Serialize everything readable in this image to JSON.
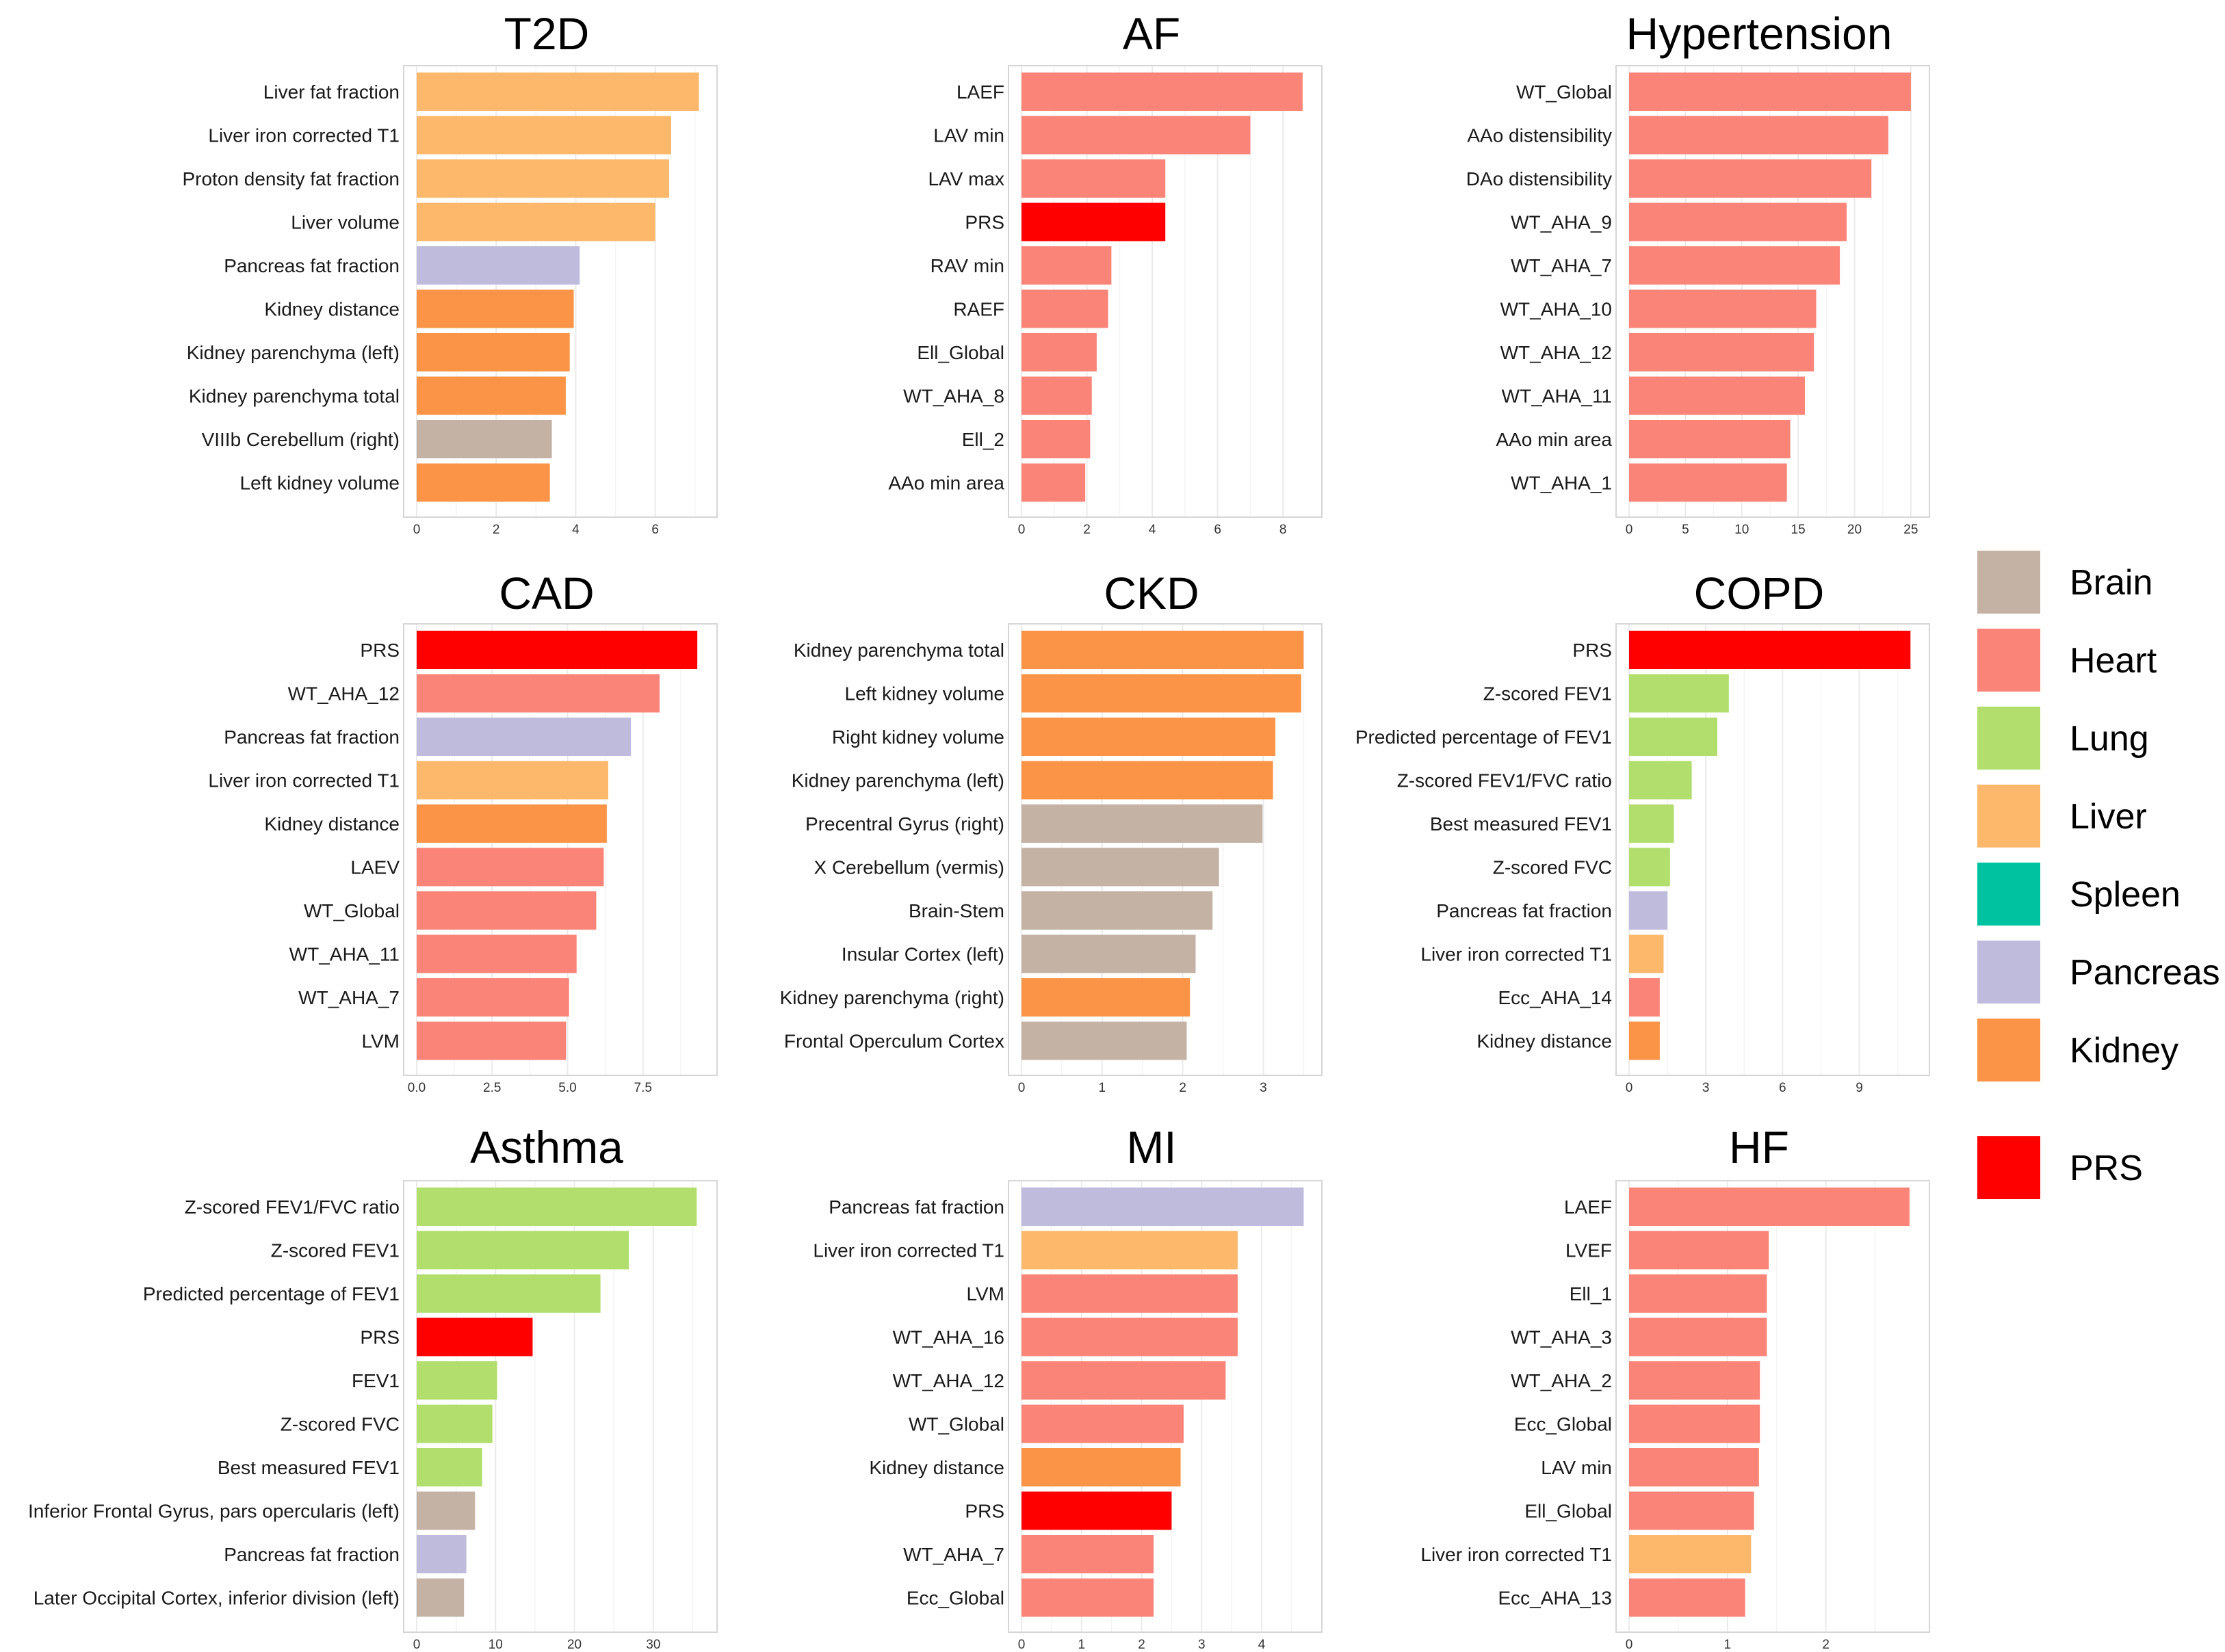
{
  "colors": {
    "Brain": "#c4b2a4",
    "Heart": "#fa8478",
    "Lung": "#b1de6c",
    "Liver": "#fdb86c",
    "Spleen": "#00c2a0",
    "Pancreas": "#bebbdc",
    "Kidney": "#fb9447",
    "PRS": "#ff0000"
  },
  "legend": {
    "items": [
      "Brain",
      "Heart",
      "Lung",
      "Liver",
      "Spleen",
      "Pancreas",
      "Kidney",
      "PRS"
    ]
  },
  "chart_data": [
    {
      "type": "bar",
      "orientation": "horizontal",
      "title": "T2D",
      "categories": [
        "Liver fat fraction",
        "Liver iron corrected T1",
        "Proton density fat fraction",
        "Liver volume",
        "Pancreas fat fraction",
        "Kidney distance",
        "Kidney parenchyma (left)",
        "Kidney parenchyma total",
        "VIIIb Cerebellum (right)",
        "Left kidney volume"
      ],
      "values": [
        7.1,
        6.4,
        6.35,
        6.0,
        4.1,
        3.95,
        3.85,
        3.75,
        3.4,
        3.35
      ],
      "groups": [
        "Liver",
        "Liver",
        "Liver",
        "Liver",
        "Pancreas",
        "Kidney",
        "Kidney",
        "Kidney",
        "Brain",
        "Kidney"
      ],
      "xlim": [
        0,
        7.4
      ],
      "xticks": [
        0,
        2,
        4,
        6
      ],
      "tick_labels": [
        "0",
        "2",
        "4",
        "6"
      ]
    },
    {
      "type": "bar",
      "orientation": "horizontal",
      "title": "AF",
      "categories": [
        "LAEF",
        "LAV min",
        "LAV max",
        "PRS",
        "RAV min",
        "RAEF",
        "Ell_Global",
        "WT_AHA_8",
        "Ell_2",
        "AAo min area"
      ],
      "values": [
        8.6,
        7.0,
        4.4,
        4.4,
        2.75,
        2.65,
        2.3,
        2.15,
        2.1,
        1.95
      ],
      "groups": [
        "Heart",
        "Heart",
        "Heart",
        "PRS",
        "Heart",
        "Heart",
        "Heart",
        "Heart",
        "Heart",
        "Heart"
      ],
      "xlim": [
        0,
        9.0
      ],
      "xticks": [
        0,
        2,
        4,
        6,
        8
      ],
      "tick_labels": [
        "0",
        "2",
        "4",
        "6",
        "8"
      ]
    },
    {
      "type": "bar",
      "orientation": "horizontal",
      "title": "Hypertension",
      "categories": [
        "WT_Global",
        "AAo distensibility",
        "DAo distensibility",
        "WT_AHA_9",
        "WT_AHA_7",
        "WT_AHA_10",
        "WT_AHA_12",
        "WT_AHA_11",
        "AAo min area",
        "WT_AHA_1"
      ],
      "values": [
        25.0,
        23.0,
        21.5,
        19.3,
        18.7,
        16.6,
        16.4,
        15.6,
        14.3,
        14.0
      ],
      "groups": [
        "Heart",
        "Heart",
        "Heart",
        "Heart",
        "Heart",
        "Heart",
        "Heart",
        "Heart",
        "Heart",
        "Heart"
      ],
      "xlim": [
        0,
        26.1
      ],
      "xticks": [
        0,
        5,
        10,
        15,
        20,
        25
      ],
      "tick_labels": [
        "0",
        "5",
        "10",
        "15",
        "20",
        "25"
      ]
    },
    {
      "type": "bar",
      "orientation": "horizontal",
      "title": "CAD",
      "categories": [
        "PRS",
        "WT_AHA_12",
        "Pancreas fat fraction",
        "Liver iron corrected T1",
        "Kidney distance",
        "LAEV",
        "WT_Global",
        "WT_AHA_11",
        "WT_AHA_7",
        "LVM"
      ],
      "values": [
        9.3,
        8.05,
        7.1,
        6.35,
        6.3,
        6.2,
        5.95,
        5.3,
        5.05,
        4.95
      ],
      "groups": [
        "PRS",
        "Heart",
        "Pancreas",
        "Liver",
        "Kidney",
        "Heart",
        "Heart",
        "Heart",
        "Heart",
        "Heart"
      ],
      "xlim": [
        0,
        9.75
      ],
      "xticks": [
        0,
        2.5,
        5,
        7.5
      ],
      "tick_labels": [
        "0.0",
        "2.5",
        "5.0",
        "7.5"
      ]
    },
    {
      "type": "bar",
      "orientation": "horizontal",
      "title": "CKD",
      "categories": [
        "Kidney parenchyma total",
        "Left kidney volume",
        "Right kidney volume",
        "Kidney parenchyma (left)",
        "Precentral Gyrus (right)",
        "X Cerebellum (vermis)",
        "Brain-Stem",
        "Insular Cortex (left)",
        "Kidney parenchyma (right)",
        "Frontal Operculum Cortex"
      ],
      "values": [
        3.5,
        3.47,
        3.15,
        3.12,
        2.99,
        2.45,
        2.37,
        2.16,
        2.09,
        2.05
      ],
      "groups": [
        "Kidney",
        "Kidney",
        "Kidney",
        "Kidney",
        "Brain",
        "Brain",
        "Brain",
        "Brain",
        "Kidney",
        "Brain"
      ],
      "xlim": [
        0,
        3.65
      ],
      "xticks": [
        0,
        1,
        2,
        3
      ],
      "tick_labels": [
        "0",
        "1",
        "2",
        "3"
      ]
    },
    {
      "type": "bar",
      "orientation": "horizontal",
      "title": "COPD",
      "categories": [
        "PRS",
        "Z-scored FEV1",
        "Predicted percentage of FEV1",
        "Z-scored FEV1/FVC ratio",
        "Best measured FEV1",
        "Z-scored FVC",
        "Pancreas fat fraction",
        "Liver iron corrected T1",
        "Ecc_AHA_14",
        "Kidney distance"
      ],
      "values": [
        11.0,
        3.9,
        3.45,
        2.45,
        1.75,
        1.6,
        1.5,
        1.35,
        1.2,
        1.2
      ],
      "groups": [
        "PRS",
        "Lung",
        "Lung",
        "Lung",
        "Lung",
        "Lung",
        "Pancreas",
        "Liver",
        "Heart",
        "Kidney"
      ],
      "xlim": [
        0,
        11.5
      ],
      "xticks": [
        0,
        3,
        6,
        9
      ],
      "tick_labels": [
        "0",
        "3",
        "6",
        "9"
      ]
    },
    {
      "type": "bar",
      "orientation": "horizontal",
      "title": "Asthma",
      "categories": [
        "Z-scored FEV1/FVC ratio",
        "Z-scored FEV1",
        "Predicted percentage of FEV1",
        "PRS",
        "FEV1",
        "Z-scored FVC",
        "Best measured FEV1",
        "Inferior Frontal Gyrus, pars opercularis (left)",
        "Pancreas fat fraction",
        "Later Occipital Cortex, inferior division (left)"
      ],
      "values": [
        35.5,
        26.9,
        23.3,
        14.7,
        10.2,
        9.6,
        8.3,
        7.4,
        6.3,
        6.0
      ],
      "groups": [
        "Lung",
        "Lung",
        "Lung",
        "PRS",
        "Lung",
        "Lung",
        "Lung",
        "Brain",
        "Pancreas",
        "Brain"
      ],
      "xlim": [
        0,
        37.3
      ],
      "xticks": [
        0,
        10,
        20,
        30
      ],
      "tick_labels": [
        "0",
        "10",
        "20",
        "30"
      ]
    },
    {
      "type": "bar",
      "orientation": "horizontal",
      "title": "MI",
      "categories": [
        "Pancreas fat fraction",
        "Liver iron corrected T1",
        "LVM",
        "WT_AHA_16",
        "WT_AHA_12",
        "WT_Global",
        "Kidney distance",
        "PRS",
        "WT_AHA_7",
        "Ecc_Global"
      ],
      "values": [
        4.7,
        3.6,
        3.6,
        3.6,
        3.4,
        2.7,
        2.65,
        2.5,
        2.2,
        2.2
      ],
      "groups": [
        "Pancreas",
        "Liver",
        "Heart",
        "Heart",
        "Heart",
        "Heart",
        "Kidney",
        "PRS",
        "Heart",
        "Heart"
      ],
      "xlim": [
        0,
        4.9
      ],
      "xticks": [
        0,
        1,
        2,
        3,
        4
      ],
      "tick_labels": [
        "0",
        "1",
        "2",
        "3",
        "4"
      ]
    },
    {
      "type": "bar",
      "orientation": "horizontal",
      "title": "HF",
      "categories": [
        "LAEF",
        "LVEF",
        "Ell_1",
        "WT_AHA_3",
        "WT_AHA_2",
        "Ecc_Global",
        "LAV min",
        "Ell_Global",
        "Liver iron corrected T1",
        "Ecc_AHA_13"
      ],
      "values": [
        2.85,
        1.42,
        1.4,
        1.4,
        1.33,
        1.33,
        1.32,
        1.27,
        1.24,
        1.18
      ],
      "groups": [
        "Heart",
        "Heart",
        "Heart",
        "Heart",
        "Heart",
        "Heart",
        "Heart",
        "Heart",
        "Liver",
        "Heart"
      ],
      "xlim": [
        0,
        2.99
      ],
      "xticks": [
        0,
        1,
        2
      ],
      "tick_labels": [
        "0",
        "1",
        "2"
      ]
    }
  ]
}
